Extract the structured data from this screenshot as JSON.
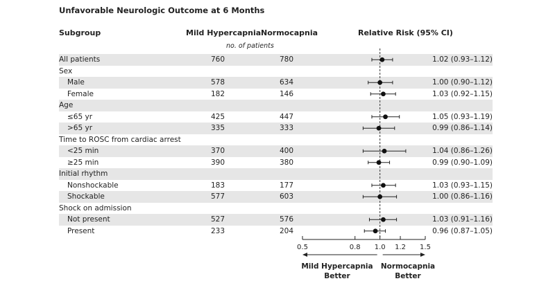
{
  "title": "Unfavorable Neurologic Outcome at 6 Months",
  "headers": {
    "subgroup": "Subgroup",
    "mild": "Mild Hypercapnia",
    "normo": "Normocapnia",
    "rr": "Relative Risk (95% CI)",
    "subheader": "no. of patients"
  },
  "chart_data": {
    "type": "forest",
    "x_scale": "log",
    "xlim": [
      0.5,
      1.5
    ],
    "x_ticks": [
      0.5,
      0.8,
      1.0,
      1.2,
      1.5
    ],
    "x_tick_labels": [
      "0.5",
      "0.8",
      "1.0",
      "1.2",
      "1.5"
    ],
    "reference_line": 1.0,
    "direction_labels": {
      "left": "Mild Hypercapnia Better",
      "right": "Normocapnia Better"
    },
    "rows": [
      {
        "label": "All patients",
        "indent": false,
        "shaded": true,
        "mild": "760",
        "normo": "780",
        "rr": 1.02,
        "lo": 0.93,
        "hi": 1.12,
        "rr_text": "1.02 (0.93–1.12)"
      },
      {
        "label": "Sex",
        "indent": false,
        "shaded": false,
        "mild": "",
        "normo": "",
        "rr": null,
        "lo": null,
        "hi": null,
        "rr_text": ""
      },
      {
        "label": "Male",
        "indent": true,
        "shaded": true,
        "mild": "578",
        "normo": "634",
        "rr": 1.0,
        "lo": 0.9,
        "hi": 1.12,
        "rr_text": "1.00 (0.90–1.12)"
      },
      {
        "label": "Female",
        "indent": true,
        "shaded": false,
        "mild": "182",
        "normo": "146",
        "rr": 1.03,
        "lo": 0.92,
        "hi": 1.15,
        "rr_text": "1.03 (0.92–1.15)"
      },
      {
        "label": "Age",
        "indent": false,
        "shaded": true,
        "mild": "",
        "normo": "",
        "rr": null,
        "lo": null,
        "hi": null,
        "rr_text": ""
      },
      {
        "label": "≤65 yr",
        "indent": true,
        "shaded": false,
        "mild": "425",
        "normo": "447",
        "rr": 1.05,
        "lo": 0.93,
        "hi": 1.19,
        "rr_text": "1.05 (0.93–1.19)"
      },
      {
        "label": ">65 yr",
        "indent": true,
        "shaded": true,
        "mild": "335",
        "normo": "333",
        "rr": 0.99,
        "lo": 0.86,
        "hi": 1.14,
        "rr_text": "0.99 (0.86–1.14)"
      },
      {
        "label": "Time to ROSC from cardiac arrest",
        "indent": false,
        "shaded": false,
        "mild": "",
        "normo": "",
        "rr": null,
        "lo": null,
        "hi": null,
        "rr_text": ""
      },
      {
        "label": "<25 min",
        "indent": true,
        "shaded": true,
        "mild": "370",
        "normo": "400",
        "rr": 1.04,
        "lo": 0.86,
        "hi": 1.26,
        "rr_text": "1.04 (0.86–1.26)"
      },
      {
        "label": "≥25 min",
        "indent": true,
        "shaded": false,
        "mild": "390",
        "normo": "380",
        "rr": 0.99,
        "lo": 0.9,
        "hi": 1.09,
        "rr_text": "0.99 (0.90–1.09)"
      },
      {
        "label": "Initial rhythm",
        "indent": false,
        "shaded": true,
        "mild": "",
        "normo": "",
        "rr": null,
        "lo": null,
        "hi": null,
        "rr_text": ""
      },
      {
        "label": "Nonshockable",
        "indent": true,
        "shaded": false,
        "mild": "183",
        "normo": "177",
        "rr": 1.03,
        "lo": 0.93,
        "hi": 1.15,
        "rr_text": "1.03 (0.93–1.15)"
      },
      {
        "label": "Shockable",
        "indent": true,
        "shaded": true,
        "mild": "577",
        "normo": "603",
        "rr": 1.0,
        "lo": 0.86,
        "hi": 1.16,
        "rr_text": "1.00 (0.86–1.16)"
      },
      {
        "label": "Shock on admission",
        "indent": false,
        "shaded": false,
        "mild": "",
        "normo": "",
        "rr": null,
        "lo": null,
        "hi": null,
        "rr_text": ""
      },
      {
        "label": "Not present",
        "indent": true,
        "shaded": true,
        "mild": "527",
        "normo": "576",
        "rr": 1.03,
        "lo": 0.91,
        "hi": 1.16,
        "rr_text": "1.03 (0.91–1.16)"
      },
      {
        "label": "Present",
        "indent": true,
        "shaded": false,
        "mild": "233",
        "normo": "204",
        "rr": 0.96,
        "lo": 0.87,
        "hi": 1.05,
        "rr_text": "0.96 (0.87–1.05)"
      }
    ]
  }
}
